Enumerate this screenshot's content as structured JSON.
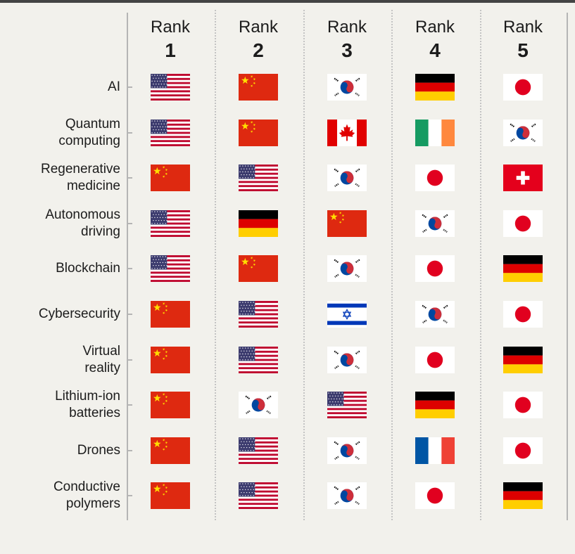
{
  "chart_data": {
    "type": "table",
    "columns": [
      {
        "word": "Rank",
        "number": "1"
      },
      {
        "word": "Rank",
        "number": "2"
      },
      {
        "word": "Rank",
        "number": "3"
      },
      {
        "word": "Rank",
        "number": "4"
      },
      {
        "word": "Rank",
        "number": "5"
      }
    ],
    "rows": [
      {
        "label": "AI",
        "ranks": [
          "us",
          "cn",
          "kr",
          "de",
          "jp"
        ]
      },
      {
        "label": "Quantum\ncomputing",
        "ranks": [
          "us",
          "cn",
          "ca",
          "ie",
          "kr"
        ]
      },
      {
        "label": "Regenerative\nmedicine",
        "ranks": [
          "cn",
          "us",
          "kr",
          "jp",
          "ch"
        ]
      },
      {
        "label": "Autonomous\ndriving",
        "ranks": [
          "us",
          "de",
          "cn",
          "kr",
          "jp"
        ]
      },
      {
        "label": "Blockchain",
        "ranks": [
          "us",
          "cn",
          "kr",
          "jp",
          "de"
        ]
      },
      {
        "label": "Cybersecurity",
        "ranks": [
          "cn",
          "us",
          "il",
          "kr",
          "jp"
        ]
      },
      {
        "label": "Virtual\nreality",
        "ranks": [
          "cn",
          "us",
          "kr",
          "jp",
          "de"
        ]
      },
      {
        "label": "Lithium-ion\nbatteries",
        "ranks": [
          "cn",
          "kr",
          "us",
          "de",
          "jp"
        ]
      },
      {
        "label": "Drones",
        "ranks": [
          "cn",
          "us",
          "kr",
          "fr",
          "jp"
        ]
      },
      {
        "label": "Conductive\npolymers",
        "ranks": [
          "cn",
          "us",
          "kr",
          "jp",
          "de"
        ]
      }
    ],
    "flag_icons": {
      "us": "united-states-flag-icon",
      "cn": "china-flag-icon",
      "kr": "south-korea-flag-icon",
      "de": "germany-flag-icon",
      "jp": "japan-flag-icon",
      "ca": "canada-flag-icon",
      "ie": "ireland-flag-icon",
      "ch": "switzerland-flag-icon",
      "il": "israel-flag-icon",
      "fr": "france-flag-icon"
    }
  }
}
